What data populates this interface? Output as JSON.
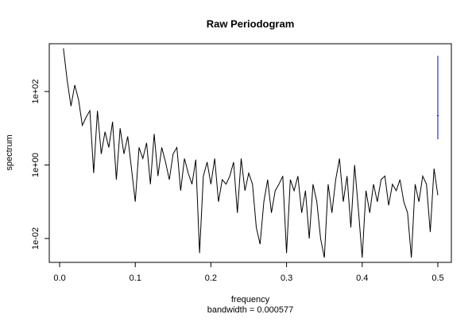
{
  "chart_data": {
    "type": "line",
    "title": "Raw Periodogram",
    "x_label": "frequency",
    "subtitle": "bandwidth = 0.000577",
    "y_label": "spectrum",
    "log_y": true,
    "color": "#000000",
    "xlim": [
      -0.0137,
      0.5179
    ],
    "ylim": [
      0.00224,
      1995
    ],
    "xticks": [
      {
        "value": 0,
        "label": "0.0"
      },
      0.1,
      0.2,
      0.3,
      0.4,
      0.5
    ],
    "yticks": [
      {
        "value": 0.01,
        "label": "1e-02"
      },
      {
        "value": 1,
        "label": "1e+00"
      },
      {
        "value": 100,
        "label": "1e+02"
      }
    ],
    "x": [
      0.005,
      0.01,
      0.015,
      0.02,
      0.025,
      0.03,
      0.035,
      0.04,
      0.045,
      0.05,
      0.055,
      0.06,
      0.065,
      0.07,
      0.075,
      0.08,
      0.085,
      0.09,
      0.095,
      0.1,
      0.105,
      0.11,
      0.115,
      0.12,
      0.125,
      0.13,
      0.135,
      0.14,
      0.145,
      0.15,
      0.155,
      0.16,
      0.165,
      0.17,
      0.175,
      0.18,
      0.185,
      0.19,
      0.195,
      0.2,
      0.205,
      0.21,
      0.215,
      0.22,
      0.225,
      0.23,
      0.235,
      0.24,
      0.245,
      0.25,
      0.255,
      0.26,
      0.265,
      0.27,
      0.275,
      0.28,
      0.285,
      0.29,
      0.295,
      0.3,
      0.305,
      0.31,
      0.315,
      0.32,
      0.325,
      0.33,
      0.335,
      0.34,
      0.345,
      0.35,
      0.355,
      0.36,
      0.365,
      0.37,
      0.375,
      0.38,
      0.385,
      0.39,
      0.395,
      0.4,
      0.405,
      0.41,
      0.415,
      0.42,
      0.425,
      0.43,
      0.435,
      0.44,
      0.445,
      0.45,
      0.455,
      0.46,
      0.465,
      0.47,
      0.475,
      0.48,
      0.485,
      0.49,
      0.495,
      0.5
    ],
    "values": [
      1500,
      200,
      40,
      150,
      60,
      12,
      20,
      30,
      0.6,
      30,
      2,
      8,
      3,
      15,
      0.4,
      10,
      2,
      6,
      0.8,
      0.1,
      3,
      1.5,
      4,
      0.3,
      7,
      0.5,
      3,
      1.2,
      0.4,
      2,
      3,
      0.2,
      1.5,
      0.6,
      0.3,
      1.4,
      0.004,
      0.5,
      1.2,
      0.3,
      1.5,
      0.1,
      0.4,
      0.3,
      0.5,
      1.2,
      0.05,
      1.5,
      0.2,
      0.6,
      0.3,
      0.02,
      0.007,
      0.1,
      0.4,
      0.05,
      0.2,
      0.3,
      0.5,
      0.004,
      0.4,
      0.2,
      0.5,
      0.05,
      0.2,
      0.01,
      0.3,
      0.1,
      0.01,
      0.003,
      0.3,
      0.05,
      0.4,
      1.5,
      0.1,
      0.5,
      0.02,
      1.0,
      0.06,
      0.003,
      0.2,
      0.05,
      0.3,
      0.1,
      0.4,
      0.5,
      0.08,
      0.3,
      0.2,
      0.4,
      0.1,
      0.05,
      0.003,
      0.3,
      0.1,
      0.5,
      0.3,
      0.015,
      0.8,
      0.15
    ],
    "ci": {
      "x": 0.5,
      "lower": 5,
      "center": 22,
      "upper": 940,
      "color": "#0000ff"
    }
  }
}
